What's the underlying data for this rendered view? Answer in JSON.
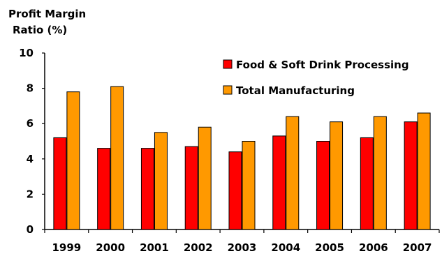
{
  "chart_data": {
    "type": "bar",
    "title": "",
    "ylabel_lines": [
      "Profit Margin",
      "Ratio (%)"
    ],
    "xlabel": "",
    "categories": [
      "1999",
      "2000",
      "2001",
      "2002",
      "2003",
      "2004",
      "2005",
      "2006",
      "2007"
    ],
    "ylim": [
      0,
      10
    ],
    "yticks": [
      0,
      2,
      4,
      6,
      8,
      10
    ],
    "grid": false,
    "legend_position": "top-right",
    "series": [
      {
        "name": "Food & Soft Drink Processing",
        "color": "#ff0000",
        "values": [
          5.2,
          4.6,
          4.6,
          4.7,
          4.4,
          5.3,
          5.0,
          5.2,
          6.1
        ]
      },
      {
        "name": "Total Manufacturing",
        "color": "#ff9900",
        "values": [
          7.8,
          8.1,
          5.5,
          5.8,
          5.0,
          6.4,
          6.1,
          6.4,
          6.6
        ]
      }
    ]
  }
}
